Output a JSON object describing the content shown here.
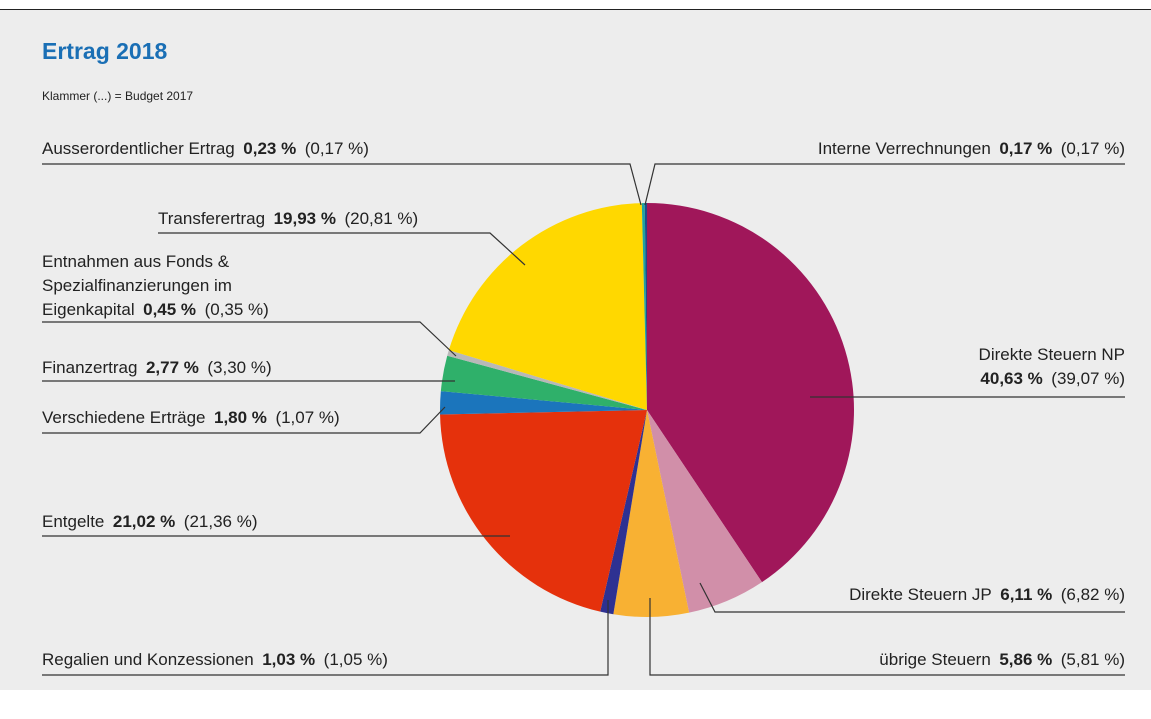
{
  "chart_data": {
    "type": "pie",
    "title": "Ertrag 2018",
    "subtitle": "Klammer (...) = Budget 2017",
    "categories": [
      "Direkte Steuern NP",
      "Direkte Steuern JP",
      "übrige Steuern",
      "Regalien und Konzessionen",
      "Entgelte",
      "Verschiedene Erträge",
      "Finanzertrag",
      "Entnahmen aus Fonds & Spezialfinanzierungen im Eigenkapital",
      "Transferertrag",
      "Ausserordentlicher Ertrag",
      "Interne Verrechnungen"
    ],
    "values": [
      40.63,
      6.11,
      5.86,
      1.03,
      21.02,
      1.8,
      2.77,
      0.45,
      19.93,
      0.23,
      0.17
    ],
    "value_labels": [
      "40,63 %",
      "6,11 %",
      "5,86 %",
      "1,03 %",
      "21,02 %",
      "1,80 %",
      "2,77 %",
      "0,45 %",
      "19,93 %",
      "0,23 %",
      "0,17 %"
    ],
    "budget_labels": [
      "(39,07 %)",
      "(6,82 %)",
      "(5,81 %)",
      "(1,05 %)",
      "(21,36 %)",
      "(1,07 %)",
      "(3,30 %)",
      "(0,35 %)",
      "(20,81 %)",
      "(0,17 %)",
      "(0,17 %)"
    ],
    "colors": [
      "#a0175a",
      "#d18fa9",
      "#f8b133",
      "#2e3192",
      "#e5310c",
      "#1b75bc",
      "#2fb06a",
      "#b8b8b8",
      "#ffd800",
      "#1fa3a0",
      "#1b4d8a"
    ]
  }
}
